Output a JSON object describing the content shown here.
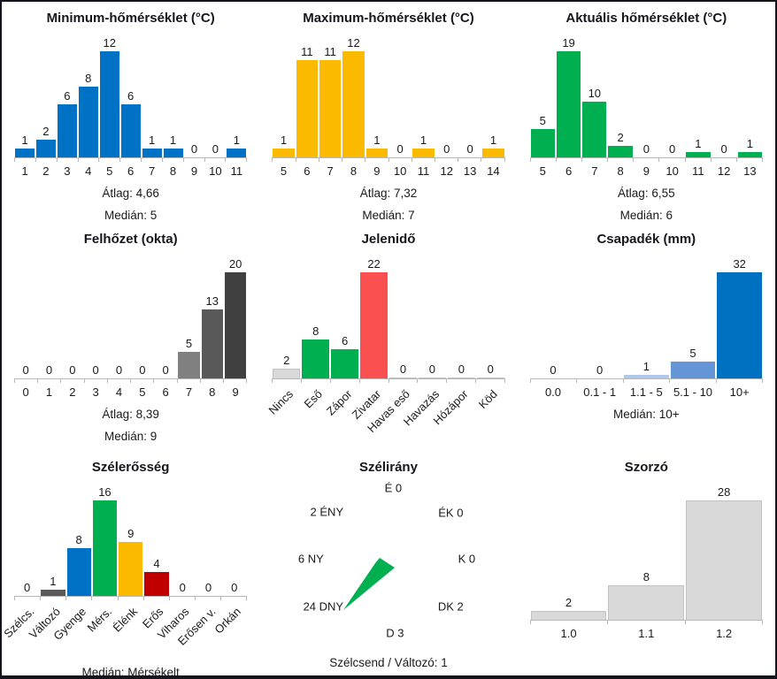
{
  "colors": {
    "blue": "#0072C6",
    "yellow": "#FBBA00",
    "green": "#00AF50",
    "salmon_red": "#FA5050",
    "dark_red": "#C00000",
    "light_gray": "#D9D9D9",
    "gray_mid": "#808080",
    "gray_dark": "#595959",
    "gray_darkest": "#404040",
    "light_blue": "#AEC7EB",
    "medium_blue": "#6496D7",
    "strong_blue": "#0070C0"
  },
  "chart_data": [
    {
      "type": "bar",
      "title": "Minimum-hőmérséklet (°C)",
      "categories": [
        "1",
        "2",
        "3",
        "4",
        "5",
        "6",
        "7",
        "8",
        "9",
        "10",
        "11"
      ],
      "values": [
        1,
        2,
        6,
        8,
        12,
        6,
        1,
        1,
        0,
        0,
        1
      ],
      "color": "#0072C6",
      "ylim": [
        0,
        12
      ],
      "stats": [
        "Átlag: 4,66",
        "Medián: 5"
      ]
    },
    {
      "type": "bar",
      "title": "Maximum-hőmérséklet (°C)",
      "categories": [
        "5",
        "6",
        "7",
        "8",
        "9",
        "10",
        "11",
        "12",
        "13",
        "14"
      ],
      "values": [
        1,
        11,
        11,
        12,
        1,
        0,
        1,
        0,
        0,
        1
      ],
      "color": "#FBBA00",
      "ylim": [
        0,
        12
      ],
      "stats": [
        "Átlag: 7,32",
        "Medián: 7"
      ]
    },
    {
      "type": "bar",
      "title": "Aktuális hőmérséklet (°C)",
      "categories": [
        "5",
        "6",
        "7",
        "8",
        "9",
        "10",
        "11",
        "12",
        "13"
      ],
      "values": [
        5,
        19,
        10,
        2,
        0,
        0,
        1,
        0,
        1
      ],
      "color": "#00AF50",
      "ylim": [
        0,
        19
      ],
      "stats": [
        "Átlag: 6,55",
        "Medián: 6"
      ]
    },
    {
      "type": "bar",
      "title": "Felhőzet (okta)",
      "categories": [
        "0",
        "1",
        "2",
        "3",
        "4",
        "5",
        "6",
        "7",
        "8",
        "9"
      ],
      "values": [
        0,
        0,
        0,
        0,
        0,
        0,
        0,
        5,
        13,
        20
      ],
      "colors": [
        "#808080",
        "#808080",
        "#808080",
        "#808080",
        "#808080",
        "#808080",
        "#808080",
        "#808080",
        "#595959",
        "#404040"
      ],
      "ylim": [
        0,
        20
      ],
      "stats": [
        "Átlag: 8,39",
        "Medián: 9"
      ]
    },
    {
      "type": "bar",
      "title": "Jelenidő",
      "categories": [
        "Nincs",
        "Eső",
        "Zápor",
        "Zivatar",
        "Havas eső",
        "Havazás",
        "Hózápor",
        "Köd"
      ],
      "values": [
        2,
        8,
        6,
        22,
        0,
        0,
        0,
        0
      ],
      "colors": [
        "#D9D9D9",
        "#00AF50",
        "#00AF50",
        "#FA5050",
        "#D9D9D9",
        "#D9D9D9",
        "#D9D9D9",
        "#D9D9D9"
      ],
      "label_rotation": 45,
      "ylim": [
        0,
        22
      ]
    },
    {
      "type": "bar",
      "title": "Csapadék (mm)",
      "categories": [
        "0.0",
        "0.1 - 1",
        "1.1 - 5",
        "5.1 - 10",
        "10+"
      ],
      "values": [
        0,
        0,
        1,
        5,
        32
      ],
      "colors": [
        "#0070C0",
        "#0070C0",
        "#AEC7EB",
        "#6496D7",
        "#0070C0"
      ],
      "ylim": [
        0,
        32
      ],
      "stats": [
        "Medián: 10+"
      ]
    },
    {
      "type": "bar",
      "title": "Szélerősség",
      "categories": [
        "Szélcs.",
        "Változó",
        "Gyenge",
        "Mérs.",
        "Élénk",
        "Erős",
        "Viharos",
        "Erősen v.",
        "Orkán"
      ],
      "values": [
        0,
        1,
        8,
        16,
        9,
        4,
        0,
        0,
        0
      ],
      "colors": [
        "#808080",
        "#595959",
        "#0072C6",
        "#00AF50",
        "#FBBA00",
        "#C00000",
        "#808080",
        "#808080",
        "#808080"
      ],
      "label_rotation": 45,
      "ylim": [
        0,
        16
      ],
      "stats": [
        "Medián: Mérsékelt"
      ]
    },
    {
      "type": "wind-rose",
      "title": "Szélirány",
      "petal_color": "#00AF50",
      "petal_direction": "DNY",
      "directions": [
        {
          "dir": "É",
          "value": 0,
          "display": "É 0"
        },
        {
          "dir": "ÉK",
          "value": 0,
          "display": "ÉK 0"
        },
        {
          "dir": "K",
          "value": 0,
          "display": "K 0"
        },
        {
          "dir": "DK",
          "value": 2,
          "display": "DK 2"
        },
        {
          "dir": "D",
          "value": 3,
          "display": "D 3"
        },
        {
          "dir": "DNY",
          "value": 24,
          "display": "24 DNY"
        },
        {
          "dir": "NY",
          "value": 6,
          "display": "6 NY"
        },
        {
          "dir": "ÉNY",
          "value": 2,
          "display": "2 ÉNY"
        }
      ],
      "footer": "Szélcsend / Változó: 1"
    },
    {
      "type": "bar",
      "title": "Szorzó",
      "categories": [
        "1.0",
        "1.1",
        "1.2"
      ],
      "values": [
        2,
        8,
        28
      ],
      "color": "#D9D9D9",
      "ylim": [
        0,
        28
      ]
    }
  ]
}
